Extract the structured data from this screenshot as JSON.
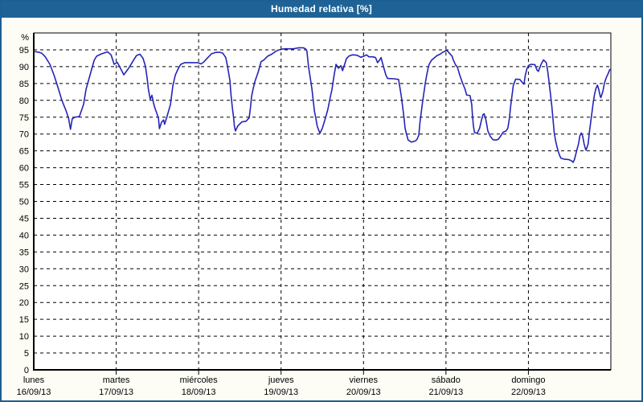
{
  "window": {
    "title": "Humedad relativa [%]"
  },
  "colors": {
    "titlebar_bg": "#1f6396",
    "titlebar_text": "#ffffff",
    "frame_border": "#1c5f94",
    "page_bg": "#fdfdf6",
    "plot_bg": "#ffffff",
    "grid": "#000000",
    "axis": "#000000",
    "line": "#2424b8"
  },
  "chart_data": {
    "type": "line",
    "title": "Humedad relativa [%]",
    "ylabel_symbol": "%",
    "ylim": [
      0,
      100
    ],
    "ytick_step": 5,
    "yticks": [
      0,
      5,
      10,
      15,
      20,
      25,
      30,
      35,
      40,
      45,
      50,
      55,
      60,
      65,
      70,
      75,
      80,
      85,
      90,
      95
    ],
    "grid": true,
    "x_unit": "hours since lunes 16/09/13 00:00",
    "xlim": [
      0,
      168
    ],
    "days": [
      {
        "name": "lunes",
        "date": "16/09/13"
      },
      {
        "name": "martes",
        "date": "17/09/13"
      },
      {
        "name": "miércoles",
        "date": "18/09/13"
      },
      {
        "name": "jueves",
        "date": "19/09/13"
      },
      {
        "name": "viernes",
        "date": "20/09/13"
      },
      {
        "name": "sábado",
        "date": "21/09/13"
      },
      {
        "name": "domingo",
        "date": "22/09/13"
      }
    ],
    "series": [
      {
        "name": "Humedad relativa",
        "color": "#2424b8",
        "points": [
          [
            0,
            94.5
          ],
          [
            1.4,
            94.3
          ],
          [
            2.3,
            94.0
          ],
          [
            3.3,
            93.0
          ],
          [
            4.7,
            90.7
          ],
          [
            5.9,
            87.5
          ],
          [
            7.0,
            84.0
          ],
          [
            8.2,
            80.0
          ],
          [
            9.4,
            76.9
          ],
          [
            10.1,
            74.8
          ],
          [
            10.7,
            71.4
          ],
          [
            11.2,
            74.5
          ],
          [
            11.9,
            75.0
          ],
          [
            13.3,
            75.2
          ],
          [
            14.5,
            78.8
          ],
          [
            15.2,
            83.2
          ],
          [
            16.4,
            87.6
          ],
          [
            17.6,
            91.9
          ],
          [
            18.3,
            93.1
          ],
          [
            19.7,
            93.8
          ],
          [
            21.5,
            94.4
          ],
          [
            22.5,
            93.5
          ],
          [
            23.4,
            90.7
          ],
          [
            24.3,
            91.3
          ],
          [
            25.0,
            90.0
          ],
          [
            26.2,
            87.6
          ],
          [
            27.6,
            89.5
          ],
          [
            28.8,
            91.5
          ],
          [
            29.9,
            93.3
          ],
          [
            30.9,
            93.7
          ],
          [
            31.8,
            92.5
          ],
          [
            32.5,
            90.2
          ],
          [
            33.0,
            86.7
          ],
          [
            33.4,
            83.2
          ],
          [
            33.9,
            80.3
          ],
          [
            34.4,
            81.5
          ],
          [
            34.9,
            79.0
          ],
          [
            35.3,
            77.6
          ],
          [
            36.3,
            74.8
          ],
          [
            36.6,
            71.6
          ],
          [
            37.2,
            73.5
          ],
          [
            37.8,
            74.2
          ],
          [
            38.1,
            72.9
          ],
          [
            38.8,
            75.2
          ],
          [
            39.8,
            78.8
          ],
          [
            40.5,
            84.4
          ],
          [
            41.2,
            87.5
          ],
          [
            42.1,
            89.5
          ],
          [
            42.8,
            90.7
          ],
          [
            44.0,
            91.2
          ],
          [
            46.3,
            91.2
          ],
          [
            47.7,
            91.2
          ],
          [
            48.7,
            90.8
          ],
          [
            49.4,
            91.3
          ],
          [
            50.5,
            92.5
          ],
          [
            51.7,
            93.8
          ],
          [
            52.9,
            94.2
          ],
          [
            54.0,
            94.3
          ],
          [
            55.0,
            94.0
          ],
          [
            55.9,
            92.7
          ],
          [
            56.4,
            90.2
          ],
          [
            57.1,
            86.0
          ],
          [
            57.4,
            82.0
          ],
          [
            57.8,
            78.0
          ],
          [
            58.2,
            74.8
          ],
          [
            58.4,
            72.4
          ],
          [
            58.7,
            70.9
          ],
          [
            59.4,
            72.4
          ],
          [
            60.6,
            73.6
          ],
          [
            61.8,
            73.8
          ],
          [
            62.7,
            74.8
          ],
          [
            63.1,
            78.0
          ],
          [
            63.4,
            81.2
          ],
          [
            63.9,
            83.6
          ],
          [
            64.4,
            85.6
          ],
          [
            65.3,
            88.3
          ],
          [
            66.2,
            91.5
          ],
          [
            66.9,
            91.9
          ],
          [
            68.1,
            93.1
          ],
          [
            69.3,
            93.7
          ],
          [
            70.4,
            94.5
          ],
          [
            71.1,
            94.9
          ],
          [
            72.3,
            95.2
          ],
          [
            73.2,
            95.3
          ],
          [
            75.6,
            95.3
          ],
          [
            77.2,
            95.6
          ],
          [
            78.4,
            95.6
          ],
          [
            79.1,
            95.3
          ],
          [
            79.5,
            94.7
          ],
          [
            80.0,
            89.9
          ],
          [
            80.5,
            86.7
          ],
          [
            81.0,
            83.2
          ],
          [
            81.3,
            80.4
          ],
          [
            81.7,
            76.8
          ],
          [
            82.1,
            74.8
          ],
          [
            82.5,
            72.4
          ],
          [
            83.3,
            70.2
          ],
          [
            84.0,
            71.7
          ],
          [
            84.7,
            74.0
          ],
          [
            85.6,
            77.2
          ],
          [
            86.3,
            80.8
          ],
          [
            86.8,
            83.2
          ],
          [
            87.2,
            86.0
          ],
          [
            87.5,
            87.9
          ],
          [
            88.0,
            90.7
          ],
          [
            88.7,
            89.5
          ],
          [
            89.4,
            90.3
          ],
          [
            89.9,
            88.8
          ],
          [
            90.6,
            91.0
          ],
          [
            91.0,
            92.3
          ],
          [
            91.7,
            93.1
          ],
          [
            92.7,
            93.5
          ],
          [
            94.1,
            93.4
          ],
          [
            95.2,
            92.8
          ],
          [
            95.9,
            93.0
          ],
          [
            96.9,
            93.5
          ],
          [
            97.6,
            92.9
          ],
          [
            98.8,
            92.9
          ],
          [
            99.5,
            92.7
          ],
          [
            100.1,
            91.2
          ],
          [
            100.7,
            92.0
          ],
          [
            101.1,
            92.7
          ],
          [
            101.8,
            90.0
          ],
          [
            102.5,
            87.5
          ],
          [
            103.0,
            86.5
          ],
          [
            104.9,
            86.4
          ],
          [
            106.2,
            86.2
          ],
          [
            107.0,
            81.2
          ],
          [
            107.4,
            78.0
          ],
          [
            107.8,
            74.8
          ],
          [
            108.1,
            71.7
          ],
          [
            108.6,
            69.7
          ],
          [
            109.0,
            68.2
          ],
          [
            110.0,
            67.6
          ],
          [
            111.2,
            68.0
          ],
          [
            111.6,
            68.5
          ],
          [
            112.1,
            69.7
          ],
          [
            112.4,
            73.2
          ],
          [
            112.8,
            76.4
          ],
          [
            113.2,
            79.6
          ],
          [
            113.6,
            82.4
          ],
          [
            114.0,
            85.2
          ],
          [
            114.4,
            87.5
          ],
          [
            114.8,
            89.5
          ],
          [
            115.1,
            90.7
          ],
          [
            115.8,
            91.9
          ],
          [
            116.7,
            92.7
          ],
          [
            117.4,
            93.3
          ],
          [
            118.3,
            93.7
          ],
          [
            119.1,
            94.3
          ],
          [
            119.8,
            94.6
          ],
          [
            120.3,
            94.8
          ],
          [
            121.0,
            94.0
          ],
          [
            121.8,
            93.1
          ],
          [
            122.1,
            92.1
          ],
          [
            122.8,
            90.5
          ],
          [
            123.3,
            89.9
          ],
          [
            124.0,
            87.5
          ],
          [
            124.8,
            85.2
          ],
          [
            125.6,
            83.2
          ],
          [
            126.0,
            81.6
          ],
          [
            127.0,
            81.4
          ],
          [
            127.5,
            78.8
          ],
          [
            127.7,
            75.6
          ],
          [
            128.0,
            72.4
          ],
          [
            128.3,
            70.5
          ],
          [
            129.1,
            70.2
          ],
          [
            129.8,
            71.7
          ],
          [
            130.3,
            74.0
          ],
          [
            130.8,
            75.8
          ],
          [
            131.1,
            76.0
          ],
          [
            131.5,
            74.8
          ],
          [
            131.8,
            73.2
          ],
          [
            132.2,
            70.9
          ],
          [
            132.9,
            69.3
          ],
          [
            133.7,
            68.3
          ],
          [
            134.7,
            68.2
          ],
          [
            135.3,
            68.5
          ],
          [
            136.1,
            69.7
          ],
          [
            136.6,
            70.5
          ],
          [
            137.5,
            70.9
          ],
          [
            138.0,
            71.7
          ],
          [
            138.5,
            74.8
          ],
          [
            138.8,
            78.0
          ],
          [
            139.2,
            81.2
          ],
          [
            139.6,
            84.4
          ],
          [
            140.0,
            85.5
          ],
          [
            140.3,
            86.3
          ],
          [
            141.5,
            86.2
          ],
          [
            142.3,
            85.2
          ],
          [
            142.7,
            84.8
          ],
          [
            143.1,
            87.5
          ],
          [
            143.6,
            89.5
          ],
          [
            144.1,
            90.4
          ],
          [
            144.8,
            90.7
          ],
          [
            145.9,
            90.6
          ],
          [
            146.5,
            89.0
          ],
          [
            146.9,
            88.6
          ],
          [
            147.7,
            90.7
          ],
          [
            148.4,
            92.0
          ],
          [
            149.2,
            91.2
          ],
          [
            149.6,
            88.7
          ],
          [
            150.0,
            85.5
          ],
          [
            150.4,
            82.0
          ],
          [
            150.8,
            78.4
          ],
          [
            151.1,
            75.0
          ],
          [
            151.5,
            70.5
          ],
          [
            151.9,
            68.1
          ],
          [
            152.3,
            66.3
          ],
          [
            152.7,
            64.8
          ],
          [
            153.1,
            63.6
          ],
          [
            153.5,
            62.8
          ],
          [
            154.6,
            62.5
          ],
          [
            155.8,
            62.4
          ],
          [
            156.6,
            62.0
          ],
          [
            157.0,
            61.6
          ],
          [
            157.4,
            62.4
          ],
          [
            157.8,
            64.0
          ],
          [
            158.2,
            65.6
          ],
          [
            158.6,
            67.1
          ],
          [
            159.0,
            69.5
          ],
          [
            159.4,
            70.3
          ],
          [
            159.8,
            69.3
          ],
          [
            160.2,
            67.1
          ],
          [
            160.6,
            65.6
          ],
          [
            160.8,
            65.2
          ],
          [
            161.4,
            67.1
          ],
          [
            161.7,
            70.2
          ],
          [
            162.1,
            73.3
          ],
          [
            162.5,
            76.4
          ],
          [
            162.9,
            79.6
          ],
          [
            163.3,
            82.0
          ],
          [
            163.7,
            83.6
          ],
          [
            164.1,
            84.5
          ],
          [
            164.5,
            83.2
          ],
          [
            164.9,
            81.2
          ],
          [
            165.1,
            80.8
          ],
          [
            165.7,
            82.8
          ],
          [
            166.1,
            85.0
          ],
          [
            166.4,
            86.0
          ],
          [
            166.8,
            87.1
          ],
          [
            167.2,
            87.9
          ],
          [
            167.6,
            89.0
          ],
          [
            168.0,
            89.3
          ]
        ]
      }
    ]
  }
}
